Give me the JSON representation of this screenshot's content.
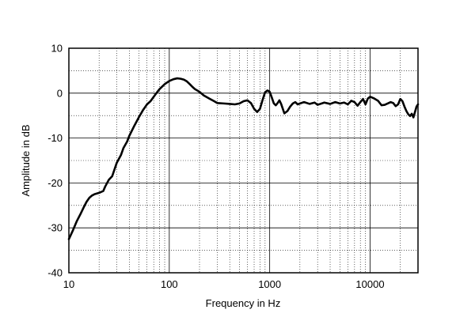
{
  "chart_data": {
    "type": "line",
    "xlabel": "Frequency in Hz",
    "ylabel": "Amplitude in dB",
    "x_scale": "log",
    "xlim": [
      10,
      30000
    ],
    "ylim": [
      -40,
      10
    ],
    "grid": true,
    "x_tick_labels": [
      {
        "value": 10,
        "label": "10"
      },
      {
        "value": 100,
        "label": "100"
      },
      {
        "value": 1000,
        "label": "1000"
      },
      {
        "value": 10000,
        "label": "10000"
      }
    ],
    "y_tick_labels": [
      {
        "value": 10,
        "label": "10"
      },
      {
        "value": 0,
        "label": "0"
      },
      {
        "value": -10,
        "label": "-10"
      },
      {
        "value": -20,
        "label": "-20"
      },
      {
        "value": -30,
        "label": "-30"
      },
      {
        "value": -40,
        "label": "-40"
      }
    ],
    "series": [
      {
        "color": "#000000",
        "x": [
          10,
          11,
          12,
          13,
          14,
          15,
          16,
          17,
          18,
          20,
          22,
          23,
          25,
          27,
          30,
          33,
          35,
          38,
          40,
          45,
          50,
          55,
          60,
          65,
          70,
          75,
          80,
          90,
          100,
          110,
          120,
          130,
          140,
          150,
          160,
          170,
          180,
          200,
          220,
          250,
          280,
          300,
          350,
          400,
          450,
          500,
          550,
          600,
          650,
          700,
          750,
          800,
          850,
          900,
          950,
          1000,
          1050,
          1100,
          1150,
          1200,
          1250,
          1300,
          1400,
          1500,
          1600,
          1700,
          1800,
          1900,
          2000,
          2200,
          2500,
          2800,
          3000,
          3500,
          4000,
          4500,
          5000,
          5500,
          6000,
          6500,
          7000,
          7500,
          8000,
          8500,
          9000,
          9500,
          10000,
          11000,
          12000,
          13000,
          14000,
          15000,
          16000,
          17000,
          18000,
          19000,
          20000,
          21000,
          22000,
          23000,
          24000,
          25000,
          26000,
          27000,
          28000,
          29000,
          30000
        ],
        "y": [
          -32.5,
          -30.5,
          -28.5,
          -27,
          -25.5,
          -24.2,
          -23.3,
          -22.8,
          -22.5,
          -22.2,
          -21.8,
          -20.8,
          -19.3,
          -18.5,
          -15.5,
          -13.8,
          -12.2,
          -10.8,
          -9.5,
          -7.2,
          -5.3,
          -3.7,
          -2.5,
          -1.8,
          -0.8,
          0.1,
          0.9,
          2.0,
          2.7,
          3.1,
          3.3,
          3.2,
          3.0,
          2.6,
          2.0,
          1.4,
          0.9,
          0.3,
          -0.5,
          -1.2,
          -1.8,
          -2.2,
          -2.3,
          -2.4,
          -2.5,
          -2.3,
          -1.8,
          -1.6,
          -2.2,
          -3.5,
          -4.2,
          -3.5,
          -1.5,
          0.2,
          0.6,
          0.3,
          -1.0,
          -2.3,
          -2.7,
          -2.2,
          -1.6,
          -2.4,
          -4.5,
          -4.0,
          -3.0,
          -2.3,
          -2.0,
          -2.5,
          -2.3,
          -2.0,
          -2.4,
          -2.1,
          -2.6,
          -2.1,
          -2.4,
          -2.0,
          -2.3,
          -2.1,
          -2.5,
          -1.7,
          -2.0,
          -2.8,
          -2.0,
          -1.3,
          -2.5,
          -1.2,
          -0.8,
          -1.2,
          -1.7,
          -2.7,
          -2.6,
          -2.3,
          -2.0,
          -2.2,
          -2.9,
          -2.5,
          -1.3,
          -1.8,
          -3.0,
          -4.0,
          -4.7,
          -5.1,
          -4.6,
          -5.4,
          -4.2,
          -3.0,
          -2.5
        ]
      }
    ]
  }
}
